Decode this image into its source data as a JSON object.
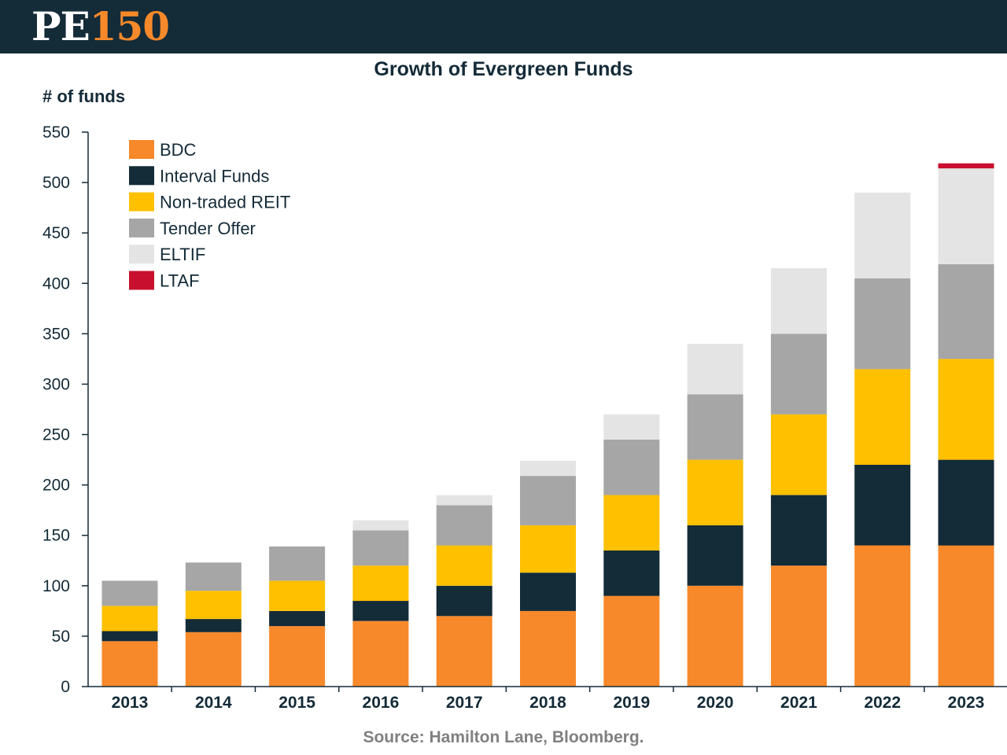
{
  "header": {
    "logo_pe": "PE",
    "logo_num": "150",
    "bg_color": "#142b38",
    "accent_color": "#f7892a"
  },
  "chart_data": {
    "type": "bar",
    "stacked": true,
    "title": "Growth of Evergreen Funds",
    "ylabel": "# of funds",
    "xlabel": "",
    "ylim": [
      0,
      550
    ],
    "yticks": [
      0,
      50,
      100,
      150,
      200,
      250,
      300,
      350,
      400,
      450,
      500,
      550
    ],
    "grid": false,
    "legend_position": "top-left",
    "categories": [
      "2013",
      "2014",
      "2015",
      "2016",
      "2017",
      "2018",
      "2019",
      "2020",
      "2021",
      "2022",
      "2023"
    ],
    "series": [
      {
        "name": "BDC",
        "color": "#f7892a",
        "values": [
          45,
          54,
          60,
          65,
          70,
          75,
          90,
          100,
          120,
          140,
          140
        ]
      },
      {
        "name": "Interval Funds",
        "color": "#142b38",
        "values": [
          10,
          13,
          15,
          20,
          30,
          38,
          45,
          60,
          70,
          80,
          85
        ]
      },
      {
        "name": "Non-traded REIT",
        "color": "#ffc000",
        "values": [
          25,
          28,
          30,
          35,
          40,
          47,
          55,
          65,
          80,
          95,
          100
        ]
      },
      {
        "name": "Tender Offer",
        "color": "#a6a6a6",
        "values": [
          25,
          28,
          34,
          35,
          40,
          49,
          55,
          65,
          80,
          90,
          94
        ]
      },
      {
        "name": "ELTIF",
        "color": "#e4e4e4",
        "values": [
          0,
          0,
          0,
          10,
          10,
          15,
          25,
          50,
          65,
          85,
          95
        ]
      },
      {
        "name": "LTAF",
        "color": "#c8102e",
        "values": [
          0,
          0,
          0,
          0,
          0,
          0,
          0,
          0,
          0,
          0,
          5
        ]
      }
    ],
    "source": "Source: Hamilton Lane, Bloomberg."
  }
}
